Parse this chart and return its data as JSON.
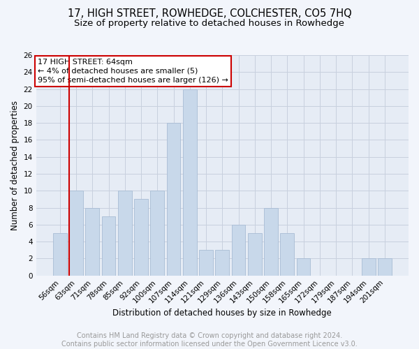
{
  "title": "17, HIGH STREET, ROWHEDGE, COLCHESTER, CO5 7HQ",
  "subtitle": "Size of property relative to detached houses in Rowhedge",
  "xlabel": "Distribution of detached houses by size in Rowhedge",
  "ylabel": "Number of detached properties",
  "footer_line1": "Contains HM Land Registry data © Crown copyright and database right 2024.",
  "footer_line2": "Contains public sector information licensed under the Open Government Licence v3.0.",
  "bar_labels": [
    "56sqm",
    "63sqm",
    "71sqm",
    "78sqm",
    "85sqm",
    "92sqm",
    "100sqm",
    "107sqm",
    "114sqm",
    "121sqm",
    "129sqm",
    "136sqm",
    "143sqm",
    "150sqm",
    "158sqm",
    "165sqm",
    "172sqm",
    "179sqm",
    "187sqm",
    "194sqm",
    "201sqm"
  ],
  "bar_values": [
    5,
    10,
    8,
    7,
    10,
    9,
    10,
    18,
    22,
    3,
    3,
    6,
    5,
    8,
    5,
    2,
    0,
    0,
    0,
    2,
    2
  ],
  "bar_color": "#c8d8ea",
  "bar_edge_color": "#a8bcd4",
  "grid_color": "#c8d0de",
  "annotation_box_text_line1": "17 HIGH STREET: 64sqm",
  "annotation_box_text_line2": "← 4% of detached houses are smaller (5)",
  "annotation_box_text_line3": "95% of semi-detached houses are larger (126) →",
  "annotation_box_color": "#cc0000",
  "ylim": [
    0,
    26
  ],
  "yticks": [
    0,
    2,
    4,
    6,
    8,
    10,
    12,
    14,
    16,
    18,
    20,
    22,
    24,
    26
  ],
  "bg_color": "#f2f5fb",
  "plot_bg_color": "#e6ecf5",
  "title_fontsize": 10.5,
  "subtitle_fontsize": 9.5,
  "axis_label_fontsize": 8.5,
  "tick_fontsize": 7.5,
  "footer_fontsize": 7.0,
  "annotation_fontsize": 8.0
}
